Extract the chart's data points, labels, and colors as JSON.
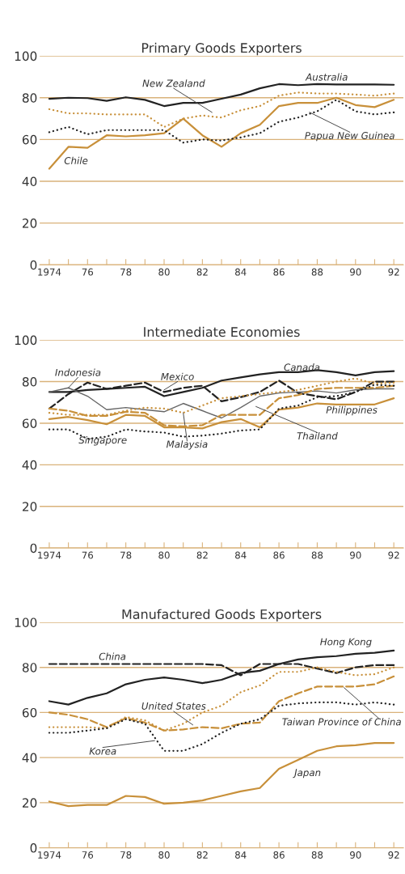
{
  "chart_data": [
    {
      "type": "line",
      "title": "Primary Goods Exporters",
      "x": [
        1974,
        1975,
        1976,
        1977,
        1978,
        1979,
        1980,
        1981,
        1982,
        1983,
        1984,
        1985,
        1986,
        1987,
        1988,
        1989,
        1990,
        1991,
        1992
      ],
      "xlim": [
        1973.5,
        1992.5
      ],
      "xticks": [
        {
          "value": 1974,
          "label": "1974"
        },
        {
          "value": 1975,
          "label": null
        },
        {
          "value": 1976,
          "label": "76"
        },
        {
          "value": 1977,
          "label": null
        },
        {
          "value": 1978,
          "label": "78"
        },
        {
          "value": 1979,
          "label": null
        },
        {
          "value": 1980,
          "label": "80"
        },
        {
          "value": 1981,
          "label": null
        },
        {
          "value": 1982,
          "label": "82"
        },
        {
          "value": 1983,
          "label": null
        },
        {
          "value": 1984,
          "label": "84"
        },
        {
          "value": 1985,
          "label": null
        },
        {
          "value": 1986,
          "label": "86"
        },
        {
          "value": 1987,
          "label": null
        },
        {
          "value": 1988,
          "label": "88"
        },
        {
          "value": 1989,
          "label": null
        },
        {
          "value": 1990,
          "label": "90"
        },
        {
          "value": 1991,
          "label": null
        },
        {
          "value": 1992,
          "label": "92"
        }
      ],
      "ylim": [
        0,
        100
      ],
      "yticks": [
        0,
        20,
        40,
        60,
        80,
        100
      ],
      "grid": "y",
      "series": [
        {
          "name": "Australia",
          "color": "#222222",
          "line_style": "solid",
          "values": [
            79.5,
            80,
            79.8,
            78.5,
            80.2,
            79,
            76,
            77.5,
            77.5,
            79.5,
            81.5,
            84.5,
            86.5,
            86,
            86.5,
            86.3,
            86.3,
            86.3,
            86.2
          ]
        },
        {
          "name": "New Zealand",
          "color": "#c8903a",
          "line_style": "dotted",
          "values": [
            74.5,
            72.5,
            72.5,
            72,
            72,
            72,
            66,
            70,
            71.5,
            70.5,
            74,
            76,
            81,
            82.5,
            82,
            82,
            81.5,
            81,
            82
          ]
        },
        {
          "name": "Papua New Guinea",
          "color": "#222222",
          "line_style": "dotted",
          "values": [
            63.5,
            66,
            62.5,
            64.5,
            64.5,
            64.5,
            64.5,
            58.5,
            60,
            59.5,
            61,
            63,
            68.5,
            70.5,
            73.5,
            79,
            73.5,
            72,
            73
          ]
        },
        {
          "name": "Chile",
          "color": "#c8903a",
          "line_style": "solid",
          "values": [
            46,
            56.5,
            56,
            62,
            61.5,
            62,
            63,
            70,
            62,
            56.5,
            63,
            67,
            76,
            77.5,
            77.5,
            80,
            76.5,
            75.5,
            79
          ]
        }
      ]
    },
    {
      "type": "line",
      "title": "Intermediate Economies",
      "x": [
        1974,
        1975,
        1976,
        1977,
        1978,
        1979,
        1980,
        1981,
        1982,
        1983,
        1984,
        1985,
        1986,
        1987,
        1988,
        1989,
        1990,
        1991,
        1992
      ],
      "xlim": [
        1973.5,
        1992.5
      ],
      "xticks": [
        {
          "value": 1974,
          "label": "1974"
        },
        {
          "value": 1975,
          "label": null
        },
        {
          "value": 1976,
          "label": "76"
        },
        {
          "value": 1977,
          "label": null
        },
        {
          "value": 1978,
          "label": "78"
        },
        {
          "value": 1979,
          "label": null
        },
        {
          "value": 1980,
          "label": "80"
        },
        {
          "value": 1981,
          "label": null
        },
        {
          "value": 1982,
          "label": "82"
        },
        {
          "value": 1983,
          "label": null
        },
        {
          "value": 1984,
          "label": "84"
        },
        {
          "value": 1985,
          "label": null
        },
        {
          "value": 1986,
          "label": "86"
        },
        {
          "value": 1987,
          "label": null
        },
        {
          "value": 1988,
          "label": "88"
        },
        {
          "value": 1989,
          "label": null
        },
        {
          "value": 1990,
          "label": "90"
        },
        {
          "value": 1991,
          "label": null
        },
        {
          "value": 1992,
          "label": "92"
        }
      ],
      "ylim": [
        0,
        100
      ],
      "yticks": [
        0,
        20,
        40,
        60,
        80,
        100
      ],
      "grid": "y",
      "series": [
        {
          "name": "Canada",
          "color": "#222222",
          "line_style": "solid",
          "values": [
            75,
            75,
            76,
            76.5,
            77,
            77.5,
            73,
            75,
            77,
            80.5,
            82,
            83.5,
            84.5,
            84.5,
            85.5,
            84.5,
            83,
            84.5,
            85
          ]
        },
        {
          "name": "Mexico",
          "color": "#222222",
          "line_style": "dashed",
          "values": [
            67,
            74,
            79.5,
            76.5,
            78,
            79.5,
            75,
            77,
            78,
            70.5,
            72.5,
            75,
            80.5,
            74.5,
            73,
            71.5,
            75,
            80,
            80
          ]
        },
        {
          "name": "Indonesia",
          "color": "#666666",
          "line_style": "solid",
          "values": [
            75,
            77,
            73,
            66.5,
            67.5,
            66.5,
            65.5,
            69.5,
            66,
            62.5,
            67.5,
            73,
            74.5,
            75,
            75.5,
            74.5,
            76,
            76.5,
            76.5
          ]
        },
        {
          "name": "Singapore",
          "color": "#222222",
          "line_style": "dotted",
          "values": [
            57,
            57,
            52.5,
            53.5,
            57,
            56,
            55.5,
            53.5,
            54,
            55,
            56.5,
            57,
            67,
            68.5,
            72.5,
            73,
            75,
            78.5,
            78
          ]
        },
        {
          "name": "Malaysia",
          "color": "#c8903a",
          "line_style": "dotted",
          "values": [
            65,
            64,
            64,
            64,
            66,
            67.5,
            67,
            65,
            68.5,
            72,
            73,
            74,
            75,
            76,
            78,
            80,
            81.5,
            79,
            79.5
          ]
        },
        {
          "name": "Thailand",
          "color": "#c8903a",
          "line_style": "dashed",
          "values": [
            67,
            66,
            63.5,
            63.5,
            65.5,
            65,
            59,
            58.5,
            59,
            64,
            64,
            64,
            72,
            73.5,
            76.5,
            77,
            77,
            77,
            78
          ]
        },
        {
          "name": "Philippines",
          "color": "#c8903a",
          "line_style": "solid",
          "values": [
            62,
            63,
            61.5,
            59.5,
            64,
            63.5,
            58,
            58,
            57.5,
            60.5,
            62,
            58,
            66.5,
            67.5,
            69.5,
            69,
            69,
            69,
            72
          ]
        }
      ]
    },
    {
      "type": "line",
      "title": "Manufactured Goods Exporters",
      "x": [
        1974,
        1975,
        1976,
        1977,
        1978,
        1979,
        1980,
        1981,
        1982,
        1983,
        1984,
        1985,
        1986,
        1987,
        1988,
        1989,
        1990,
        1991,
        1992
      ],
      "xlim": [
        1973.5,
        1992.5
      ],
      "xticks": [
        {
          "value": 1974,
          "label": "1974"
        },
        {
          "value": 1975,
          "label": null
        },
        {
          "value": 1976,
          "label": "76"
        },
        {
          "value": 1977,
          "label": null
        },
        {
          "value": 1978,
          "label": "78"
        },
        {
          "value": 1979,
          "label": null
        },
        {
          "value": 1980,
          "label": "80"
        },
        {
          "value": 1981,
          "label": null
        },
        {
          "value": 1982,
          "label": "82"
        },
        {
          "value": 1983,
          "label": null
        },
        {
          "value": 1984,
          "label": "84"
        },
        {
          "value": 1985,
          "label": null
        },
        {
          "value": 1986,
          "label": "86"
        },
        {
          "value": 1987,
          "label": null
        },
        {
          "value": 1988,
          "label": "88"
        },
        {
          "value": 1989,
          "label": null
        },
        {
          "value": 1990,
          "label": "90"
        },
        {
          "value": 1991,
          "label": null
        },
        {
          "value": 1992,
          "label": "92"
        }
      ],
      "ylim": [
        0,
        100
      ],
      "yticks": [
        0,
        20,
        40,
        60,
        80,
        100
      ],
      "grid": "y",
      "series": [
        {
          "name": "Hong Kong",
          "color": "#222222",
          "line_style": "solid",
          "values": [
            65,
            63.5,
            66.5,
            68.5,
            72.5,
            74.5,
            75.5,
            74.5,
            73,
            74.5,
            77.5,
            78.5,
            81.5,
            83.5,
            84.5,
            85,
            86,
            86.5,
            87.5
          ]
        },
        {
          "name": "China",
          "color": "#222222",
          "line_style": "dashed",
          "values": [
            81.5,
            81.5,
            81.5,
            81.5,
            81.5,
            81.5,
            81.5,
            81.5,
            81.5,
            81,
            76.5,
            81.5,
            81.5,
            81.5,
            79.5,
            77.5,
            80,
            81,
            81
          ]
        },
        {
          "name": "United States",
          "color": "#c8903a",
          "line_style": "dotted",
          "values": [
            53.5,
            53.5,
            53.5,
            53,
            58,
            56.5,
            52,
            55,
            60,
            63,
            69,
            72,
            78,
            78,
            80,
            78,
            76.5,
            77,
            80
          ]
        },
        {
          "name": "Taiwan Province of China",
          "color": "#c8903a",
          "line_style": "dashed",
          "values": [
            60,
            59,
            57,
            53.5,
            57.5,
            55.5,
            52,
            52.5,
            53.5,
            53,
            55,
            55.5,
            65,
            68.5,
            71.5,
            71.5,
            71.5,
            72.5,
            76
          ]
        },
        {
          "name": "Korea",
          "color": "#222222",
          "line_style": "dotted",
          "values": [
            51,
            51,
            52,
            53,
            57,
            55,
            43,
            43,
            46,
            51,
            55,
            57,
            63,
            64,
            64.5,
            64.5,
            63.5,
            64.5,
            63.5
          ]
        },
        {
          "name": "Japan",
          "color": "#c8903a",
          "line_style": "solid",
          "values": [
            20.5,
            18.5,
            19,
            19,
            23,
            22.5,
            19.5,
            20,
            21,
            23,
            25,
            26.5,
            35,
            39,
            43,
            45,
            45.5,
            46.5,
            46.5
          ]
        }
      ]
    }
  ]
}
